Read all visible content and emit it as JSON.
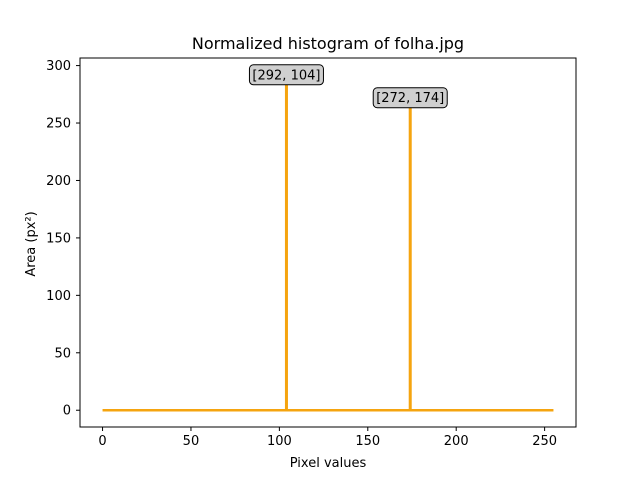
{
  "chart_data": {
    "type": "line",
    "title": "Normalized histogram of folha.jpg",
    "xlabel": "Pixel values",
    "ylabel": "Area (px²)",
    "xlim": [
      -12.75,
      267.75
    ],
    "ylim": [
      -14.6,
      306.6
    ],
    "xticks": [
      0,
      50,
      100,
      150,
      200,
      250
    ],
    "yticks": [
      0,
      50,
      100,
      150,
      200,
      250,
      300
    ],
    "grid": false,
    "series": [
      {
        "color": "#f5a40f",
        "baseline": {
          "x": [
            0,
            255
          ],
          "y": 0
        },
        "spikes": [
          {
            "x": 104,
            "y": 292
          },
          {
            "x": 174,
            "y": 272
          }
        ]
      }
    ],
    "annotations": [
      {
        "text": "[292, 104]",
        "x": 104,
        "y": 292
      },
      {
        "text": "[272, 174]",
        "x": 174,
        "y": 272
      }
    ]
  }
}
